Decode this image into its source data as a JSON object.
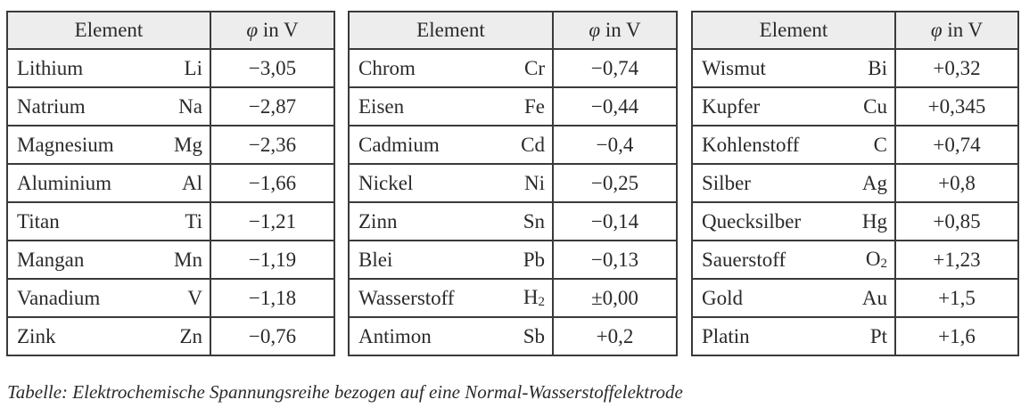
{
  "header": {
    "element": "Element",
    "phi": "φ",
    "unit": " in V"
  },
  "tables": [
    {
      "rows": [
        {
          "name": "Lithium",
          "sym": "Li",
          "sub": "",
          "val": "−3,05"
        },
        {
          "name": "Natrium",
          "sym": "Na",
          "sub": "",
          "val": "−2,87"
        },
        {
          "name": "Magnesium",
          "sym": "Mg",
          "sub": "",
          "val": "−2,36"
        },
        {
          "name": "Aluminium",
          "sym": "Al",
          "sub": "",
          "val": "−1,66"
        },
        {
          "name": "Titan",
          "sym": "Ti",
          "sub": "",
          "val": "−1,21"
        },
        {
          "name": "Mangan",
          "sym": "Mn",
          "sub": "",
          "val": "−1,19"
        },
        {
          "name": "Vanadium",
          "sym": "V",
          "sub": "",
          "val": "−1,18"
        },
        {
          "name": "Zink",
          "sym": "Zn",
          "sub": "",
          "val": "−0,76"
        }
      ]
    },
    {
      "rows": [
        {
          "name": "Chrom",
          "sym": "Cr",
          "sub": "",
          "val": "−0,74"
        },
        {
          "name": "Eisen",
          "sym": "Fe",
          "sub": "",
          "val": "−0,44"
        },
        {
          "name": "Cadmium",
          "sym": "Cd",
          "sub": "",
          "val": "−0,4"
        },
        {
          "name": "Nickel",
          "sym": "Ni",
          "sub": "",
          "val": "−0,25"
        },
        {
          "name": "Zinn",
          "sym": "Sn",
          "sub": "",
          "val": "−0,14"
        },
        {
          "name": "Blei",
          "sym": "Pb",
          "sub": "",
          "val": "−0,13"
        },
        {
          "name": "Wasserstoff",
          "sym": "H",
          "sub": "2",
          "val": "±0,00"
        },
        {
          "name": "Antimon",
          "sym": "Sb",
          "sub": "",
          "val": "+0,2"
        }
      ]
    },
    {
      "rows": [
        {
          "name": "Wismut",
          "sym": "Bi",
          "sub": "",
          "val": "+0,32"
        },
        {
          "name": "Kupfer",
          "sym": "Cu",
          "sub": "",
          "val": "+0,345"
        },
        {
          "name": "Kohlenstoff",
          "sym": "C",
          "sub": "",
          "val": "+0,74"
        },
        {
          "name": "Silber",
          "sym": "Ag",
          "sub": "",
          "val": "+0,8"
        },
        {
          "name": "Quecksilber",
          "sym": "Hg",
          "sub": "",
          "val": "+0,85"
        },
        {
          "name": "Sauerstoff",
          "sym": "O",
          "sub": "2",
          "val": "+1,23"
        },
        {
          "name": "Gold",
          "sym": "Au",
          "sub": "",
          "val": "+1,5"
        },
        {
          "name": "Platin",
          "sym": "Pt",
          "sub": "",
          "val": "+1,6"
        }
      ]
    }
  ],
  "caption": "Tabelle: Elektrochemische Spannungsreihe bezogen auf eine Normal-Wasserstoffelektrode"
}
